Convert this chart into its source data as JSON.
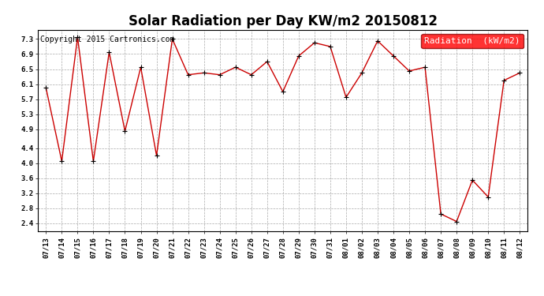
{
  "title": "Solar Radiation per Day KW/m2 20150812",
  "copyright_text": "Copyright 2015 Cartronics.com",
  "legend_label": "Radiation  (kW/m2)",
  "dates": [
    "07/13",
    "07/14",
    "07/15",
    "07/16",
    "07/17",
    "07/18",
    "07/19",
    "07/20",
    "07/21",
    "07/22",
    "07/23",
    "07/24",
    "07/25",
    "07/26",
    "07/27",
    "07/28",
    "07/29",
    "07/30",
    "07/31",
    "08/01",
    "08/02",
    "08/03",
    "08/04",
    "08/05",
    "08/06",
    "08/07",
    "08/08",
    "08/09",
    "08/10",
    "08/11",
    "08/12"
  ],
  "values": [
    6.0,
    4.05,
    7.35,
    4.05,
    6.95,
    4.85,
    6.55,
    4.2,
    7.3,
    6.35,
    6.4,
    6.35,
    6.55,
    6.35,
    6.7,
    5.9,
    6.85,
    7.2,
    7.1,
    5.75,
    6.4,
    7.25,
    6.85,
    6.45,
    6.55,
    2.65,
    2.45,
    3.55,
    3.1,
    6.2,
    6.4
  ],
  "line_color": "#cc0000",
  "marker_color": "#000000",
  "bg_color": "#ffffff",
  "grid_color": "#aaaaaa",
  "ylim_min": 2.2,
  "ylim_max": 7.55,
  "yticks": [
    2.4,
    2.8,
    3.2,
    3.6,
    4.0,
    4.4,
    4.9,
    5.3,
    5.7,
    6.1,
    6.5,
    6.9,
    7.3
  ],
  "title_fontsize": 12,
  "tick_fontsize": 6.5,
  "legend_fontsize": 8,
  "copyright_fontsize": 7
}
